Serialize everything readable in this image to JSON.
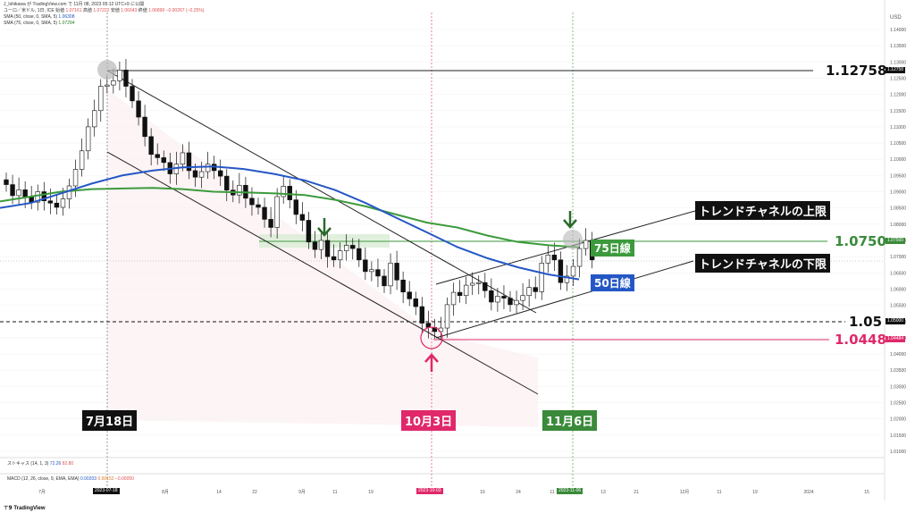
{
  "header": {
    "author_line": "J_Ishikawa が TradingView.com で 11月 08, 2023 05:12 UTC+9 に公開",
    "symbol_prefix": "ユーロ／米ドル, 1日, ICE  始値",
    "open": "1.07161",
    "high_label": "高値",
    "high": "1.07222",
    "low_label": "安値",
    "low": "1.06643",
    "close_label": "終値",
    "close": "1.06899",
    "change": "−0.00267 (−0.25%)",
    "sma50_label": "SMA (50, close, 0, SMA, 5)",
    "sma50_value": "1.06308",
    "sma75_label": "SMA (75, close, 0, SMA, 5)",
    "sma75_value": "1.07294"
  },
  "annotations": {
    "level_top": "1.12758",
    "level_075": "1.0750",
    "level_105": "1.05",
    "level_1448": "1.0448",
    "upper_channel_label": "トレンドチャネルの上限",
    "lower_channel_label": "トレンドチャネルの下限",
    "ma75_label": "75日線",
    "ma50_label": "50日線",
    "date_jul18": "7月18日",
    "date_oct3": "10月3日",
    "date_nov6": "11月6日"
  },
  "axis_tags": {
    "currency": "USD",
    "price_tag_top": "1.12758",
    "price_tag_075": "1.07500",
    "price_tag_105": "1.05000",
    "price_tag_1448": "1.04484",
    "date_tag_jul": "2023-07-18",
    "date_tag_oct": "2023-10-03",
    "date_tag_nov": "2023-11-06"
  },
  "lower_panels": {
    "stoch_label": "ストキャス (14, 1, 3)",
    "stoch_k": "72.26",
    "stoch_d": "82.80",
    "macd_label": "MACD (12, 26, close, 9, EMA, EMA)",
    "macd_a": "0.00203",
    "macd_b": "0.00152",
    "macd_c": "−0.00050"
  },
  "brand": "TradingView",
  "colors": {
    "up_candle": "#ffffff",
    "down_candle": "#111111",
    "sma50": "#2457c5",
    "sma75": "#3c9a3c",
    "pink": "#e0286a",
    "green_tag": "#3a8a3a"
  },
  "chart_data": {
    "type": "candlestick",
    "symbol": "EUR/USD",
    "timeframe": "1D",
    "ylim": [
      1.005,
      1.145
    ],
    "y_ticks": [
      1.01,
      1.015,
      1.02,
      1.025,
      1.03,
      1.035,
      1.04,
      1.045,
      1.05,
      1.055,
      1.06,
      1.065,
      1.07,
      1.075,
      1.08,
      1.085,
      1.09,
      1.095,
      1.1,
      1.105,
      1.11,
      1.115,
      1.12,
      1.125,
      1.13,
      1.135,
      1.14
    ],
    "x_ticks": [
      "7月",
      "2023-07-18",
      "8月",
      "14",
      "22",
      "9月",
      "11",
      "19",
      "2023-10-03",
      "16",
      "24",
      "11",
      "2023-11-06",
      "13",
      "21",
      "12月",
      "11",
      "19",
      "2024",
      "15"
    ],
    "horizontal_levels": [
      1.12758,
      1.075,
      1.05,
      1.04484
    ],
    "closes": [
      1.0922,
      1.0888,
      1.0906,
      1.0884,
      1.0868,
      1.09,
      1.0872,
      1.0865,
      1.0852,
      1.0878,
      1.0918,
      1.0969,
      1.1026,
      1.11,
      1.115,
      1.1225,
      1.1229,
      1.1242,
      1.1275,
      1.1225,
      1.118,
      1.113,
      1.107,
      1.1015,
      1.1005,
      1.099,
      1.0955,
      1.0985,
      1.102,
      1.0965,
      1.0945,
      1.0962,
      1.0985,
      1.0965,
      1.0948,
      1.0905,
      1.089,
      1.092,
      1.088,
      1.086,
      1.0852,
      1.0815,
      1.079,
      1.0885,
      1.0917,
      1.0875,
      1.083,
      1.0812,
      1.0745,
      1.0722,
      1.075,
      1.07,
      1.069,
      1.0718,
      1.0735,
      1.0725,
      1.069,
      1.0654,
      1.066,
      1.064,
      1.061,
      1.068,
      1.0628,
      1.0591,
      1.057,
      1.0546,
      1.0495,
      1.0482,
      1.0469,
      1.048,
      1.0552,
      1.059,
      1.058,
      1.0612,
      1.0618,
      1.062,
      1.0595,
      1.056,
      1.0578,
      1.0572,
      1.0552,
      1.0565,
      1.058,
      1.0605,
      1.0592,
      1.068,
      1.0705,
      1.069,
      1.062,
      1.064,
      1.067,
      1.0725,
      1.075,
      1.069
    ],
    "sma50": [
      1.085,
      1.0865,
      1.0895,
      1.0925,
      1.095,
      1.0965,
      1.0975,
      1.0978,
      1.097,
      1.0955,
      1.0935,
      1.0905,
      1.0865,
      1.082,
      1.0775,
      1.073,
      1.0695,
      1.0667,
      1.0645,
      1.063
    ],
    "sma75": [
      1.087,
      1.0885,
      1.09,
      1.0908,
      1.091,
      1.0912,
      1.0908,
      1.09,
      1.0898,
      1.0895,
      1.089,
      1.0875,
      1.0855,
      1.083,
      1.0805,
      1.079,
      1.0765,
      1.0745,
      1.0735,
      1.0729
    ]
  }
}
